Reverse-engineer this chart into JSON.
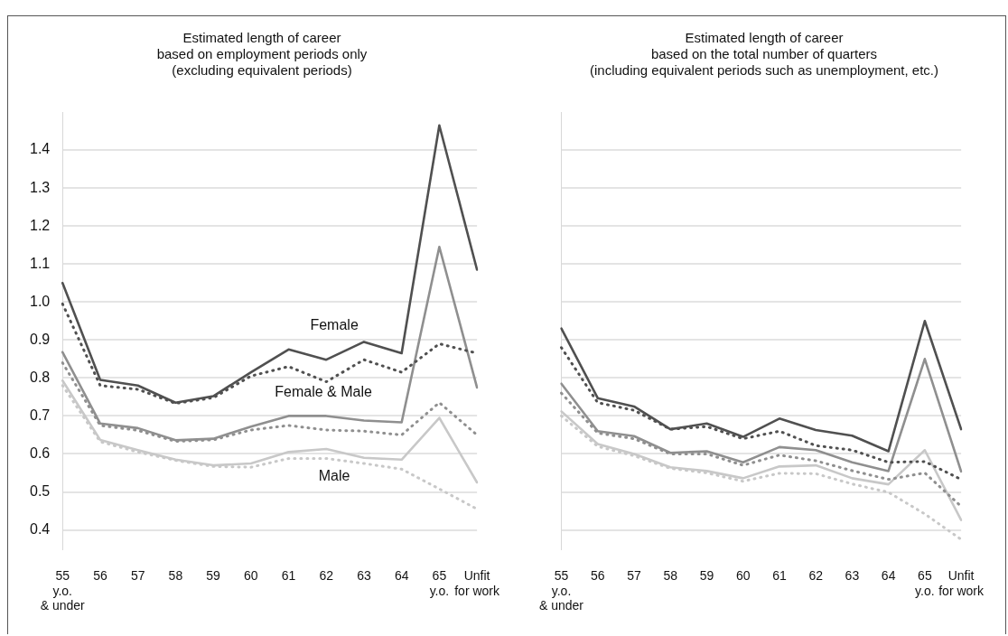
{
  "chart_data": [
    {
      "type": "line",
      "title": "Estimated length of career\nbased on employment periods only\n(excluding equivalent periods)",
      "categories": [
        "55\ny.o.\n& under",
        "56",
        "57",
        "58",
        "59",
        "60",
        "61",
        "62",
        "63",
        "64",
        "65\ny.o.",
        "Unfit\nfor work"
      ],
      "ylim": [
        0.35,
        1.5
      ],
      "yticks": [
        0.4,
        0.5,
        0.6,
        0.7,
        0.8,
        0.9,
        {
          "value": 1,
          "label": "1.0"
        },
        1.1,
        1.2,
        1.3,
        1.4
      ],
      "grid": "y",
      "marker": "none",
      "series": [
        {
          "name": "Female",
          "color": "#505050",
          "line_style": "solid",
          "values": [
            1.05,
            0.795,
            0.78,
            0.735,
            0.752,
            0.815,
            0.875,
            0.848,
            0.895,
            0.865,
            1.465,
            1.085
          ]
        },
        {
          "color": "#505050",
          "line_style": "dotted",
          "values": [
            0.995,
            0.78,
            0.77,
            0.733,
            0.748,
            0.805,
            0.83,
            0.79,
            0.848,
            0.815,
            0.89,
            0.865
          ]
        },
        {
          "name": "Female & Male",
          "color": "#8f8f8f",
          "line_style": "solid",
          "values": [
            0.868,
            0.68,
            0.668,
            0.636,
            0.64,
            0.672,
            0.7,
            0.7,
            0.688,
            0.683,
            1.145,
            0.775
          ]
        },
        {
          "color": "#8f8f8f",
          "line_style": "dotted",
          "values": [
            0.84,
            0.675,
            0.662,
            0.633,
            0.637,
            0.663,
            0.675,
            0.663,
            0.66,
            0.65,
            0.735,
            0.65
          ]
        },
        {
          "name": "Male",
          "color": "#c8c8c8",
          "line_style": "solid",
          "values": [
            0.793,
            0.637,
            0.61,
            0.585,
            0.57,
            0.575,
            0.605,
            0.613,
            0.59,
            0.585,
            0.695,
            0.525
          ]
        },
        {
          "color": "#c8c8c8",
          "line_style": "dotted",
          "values": [
            0.78,
            0.632,
            0.605,
            0.583,
            0.567,
            0.565,
            0.588,
            0.588,
            0.575,
            0.56,
            0.508,
            0.455
          ]
        }
      ]
    },
    {
      "type": "line",
      "title": "Estimated length of career\nbased on the total number of quarters\n(including equivalent periods such as unemployment, etc.)",
      "categories": [
        "55\ny.o.\n& under",
        "56",
        "57",
        "58",
        "59",
        "60",
        "61",
        "62",
        "63",
        "64",
        "65\ny.o.",
        "Unfit\nfor work"
      ],
      "ylim": [
        0.35,
        1.5
      ],
      "yticks": [
        0.4,
        0.5,
        0.6,
        0.7,
        0.8,
        0.9,
        1,
        1.1,
        1.2,
        1.3,
        1.4
      ],
      "grid": "y",
      "tick_labels": "x",
      "marker": "none",
      "series": [
        {
          "color": "#505050",
          "line_style": "solid",
          "values": [
            0.93,
            0.747,
            0.725,
            0.665,
            0.68,
            0.645,
            0.693,
            0.663,
            0.648,
            0.607,
            0.95,
            0.665
          ]
        },
        {
          "color": "#505050",
          "line_style": "dotted",
          "values": [
            0.88,
            0.735,
            0.715,
            0.665,
            0.672,
            0.64,
            0.66,
            0.622,
            0.61,
            0.578,
            0.58,
            0.533
          ]
        },
        {
          "color": "#8f8f8f",
          "line_style": "solid",
          "values": [
            0.785,
            0.66,
            0.647,
            0.603,
            0.607,
            0.578,
            0.618,
            0.61,
            0.578,
            0.555,
            0.85,
            0.554
          ]
        },
        {
          "color": "#8f8f8f",
          "line_style": "dotted",
          "values": [
            0.76,
            0.655,
            0.64,
            0.6,
            0.6,
            0.57,
            0.597,
            0.582,
            0.556,
            0.533,
            0.55,
            0.462
          ]
        },
        {
          "color": "#c8c8c8",
          "line_style": "solid",
          "values": [
            0.712,
            0.626,
            0.6,
            0.565,
            0.555,
            0.536,
            0.567,
            0.57,
            0.536,
            0.52,
            0.61,
            0.426
          ]
        },
        {
          "color": "#c8c8c8",
          "line_style": "dotted",
          "values": [
            0.7,
            0.62,
            0.595,
            0.562,
            0.55,
            0.528,
            0.549,
            0.548,
            0.521,
            0.499,
            0.442,
            0.375
          ]
        }
      ]
    }
  ]
}
